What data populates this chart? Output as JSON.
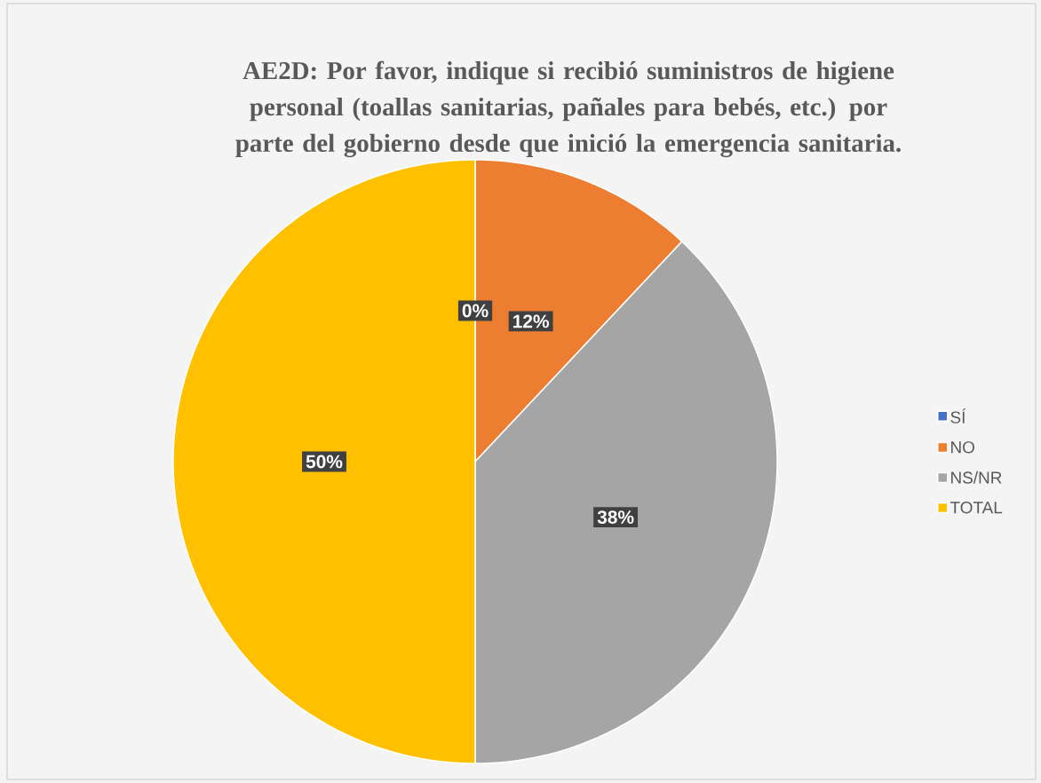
{
  "chart_data": {
    "type": "pie",
    "title": "AE2D: Por favor, indique si recibió suministros de higiene personal (toallas sanitarias, pañales para bebés, etc.) por parte del gobierno desde que inició la emergencia sanitaria.",
    "categories": [
      "SÍ",
      "NO",
      "NS/NR",
      "TOTAL"
    ],
    "values": [
      0,
      12,
      38,
      50
    ],
    "colors": [
      "#4472c4",
      "#ed7d31",
      "#a5a5a5",
      "#ffc000"
    ],
    "value_labels": [
      "0%",
      "12%",
      "38%",
      "50%"
    ],
    "legend": "right"
  }
}
